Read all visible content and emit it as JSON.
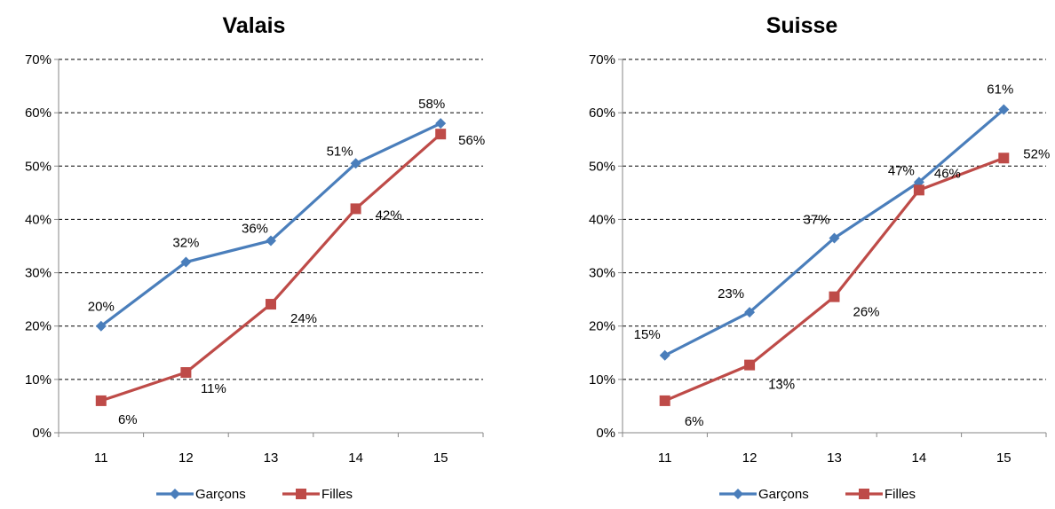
{
  "colors": {
    "garcons": "#4a7ebb",
    "filles": "#be4b48"
  },
  "chart_data": [
    {
      "type": "line",
      "title": "Valais",
      "categories": [
        "11",
        "12",
        "13",
        "14",
        "15"
      ],
      "ylim": [
        0,
        70
      ],
      "yticks": [
        "0%",
        "10%",
        "20%",
        "30%",
        "40%",
        "50%",
        "60%",
        "70%"
      ],
      "grid": true,
      "legend": "bottom",
      "series": [
        {
          "name": "Garçons",
          "values": [
            20,
            32,
            36,
            50.5,
            58
          ],
          "labels": [
            "20%",
            "32%",
            "36%",
            "51%",
            "58%"
          ]
        },
        {
          "name": "Filles",
          "values": [
            6,
            11.3,
            24.1,
            42,
            56
          ],
          "labels": [
            "6%",
            "11%",
            "24%",
            "42%",
            "56%"
          ]
        }
      ]
    },
    {
      "type": "line",
      "title": "Suisse",
      "categories": [
        "11",
        "12",
        "13",
        "14",
        "15"
      ],
      "ylim": [
        0,
        70
      ],
      "yticks": [
        "0%",
        "10%",
        "20%",
        "30%",
        "40%",
        "50%",
        "60%",
        "70%"
      ],
      "grid": true,
      "legend": "bottom",
      "series": [
        {
          "name": "Garçons",
          "values": [
            14.5,
            22.6,
            36.5,
            47,
            60.6
          ],
          "labels": [
            "15%",
            "23%",
            "37%",
            "47%",
            "61%"
          ]
        },
        {
          "name": "Filles",
          "values": [
            6,
            12.7,
            25.5,
            45.5,
            51.5
          ],
          "labels": [
            "6%",
            "13%",
            "26%",
            "46%",
            "52%"
          ]
        }
      ]
    }
  ]
}
